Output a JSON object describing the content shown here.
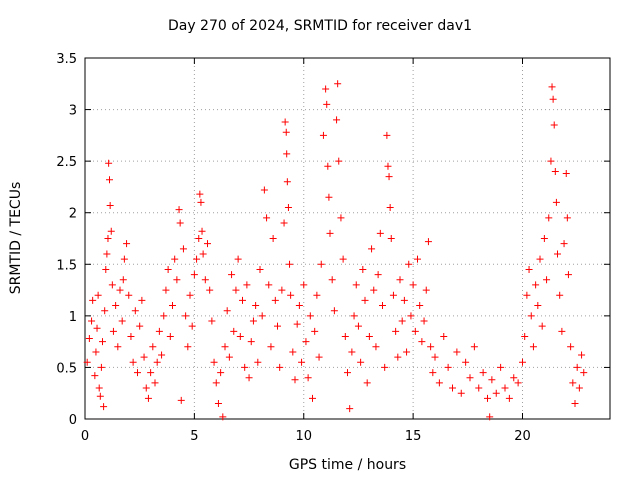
{
  "chart_data": {
    "type": "scatter",
    "title": "Day 270 of 2024, SRMTID for receiver dav1",
    "xlabel": "GPS time / hours",
    "ylabel": "SRMTID / TECUs",
    "xlim": [
      0,
      24
    ],
    "ylim": [
      0,
      3.5
    ],
    "xticks": [
      0,
      5,
      10,
      15,
      20
    ],
    "yticks": [
      0,
      0.5,
      1,
      1.5,
      2,
      2.5,
      3,
      3.5
    ],
    "xtick_labels": [
      "0",
      "5",
      "10",
      "15",
      "20"
    ],
    "ytick_labels": [
      "0",
      "0.5",
      "1",
      "1.5",
      "2",
      "2.5",
      "3",
      "3.5"
    ],
    "grid": true,
    "marker": "+",
    "color": "#ff0000",
    "series": [
      {
        "name": "dav1",
        "points": [
          [
            0.1,
            0.55
          ],
          [
            0.2,
            0.78
          ],
          [
            0.3,
            0.95
          ],
          [
            0.35,
            1.15
          ],
          [
            0.45,
            0.42
          ],
          [
            0.5,
            0.65
          ],
          [
            0.55,
            0.88
          ],
          [
            0.6,
            1.2
          ],
          [
            0.65,
            0.3
          ],
          [
            0.7,
            0.22
          ],
          [
            0.75,
            0.5
          ],
          [
            0.8,
            0.75
          ],
          [
            0.85,
            0.12
          ],
          [
            0.9,
            1.05
          ],
          [
            0.95,
            1.45
          ],
          [
            1.0,
            1.6
          ],
          [
            1.05,
            1.75
          ],
          [
            1.08,
            2.48
          ],
          [
            1.12,
            2.32
          ],
          [
            1.15,
            2.07
          ],
          [
            1.2,
            1.82
          ],
          [
            1.25,
            1.3
          ],
          [
            1.3,
            0.85
          ],
          [
            1.4,
            1.1
          ],
          [
            1.5,
            0.7
          ],
          [
            1.6,
            1.25
          ],
          [
            1.7,
            0.95
          ],
          [
            1.75,
            1.35
          ],
          [
            1.8,
            1.55
          ],
          [
            1.9,
            1.7
          ],
          [
            2.0,
            1.2
          ],
          [
            2.1,
            0.8
          ],
          [
            2.2,
            0.55
          ],
          [
            2.3,
            1.05
          ],
          [
            2.4,
            0.45
          ],
          [
            2.5,
            0.9
          ],
          [
            2.6,
            1.15
          ],
          [
            2.7,
            0.6
          ],
          [
            2.8,
            0.3
          ],
          [
            2.9,
            0.2
          ],
          [
            3.0,
            0.45
          ],
          [
            3.1,
            0.7
          ],
          [
            3.2,
            0.35
          ],
          [
            3.3,
            0.55
          ],
          [
            3.4,
            0.85
          ],
          [
            3.5,
            0.62
          ],
          [
            3.6,
            1.0
          ],
          [
            3.7,
            1.25
          ],
          [
            3.8,
            1.45
          ],
          [
            3.9,
            0.8
          ],
          [
            4.0,
            1.1
          ],
          [
            4.1,
            1.55
          ],
          [
            4.2,
            1.35
          ],
          [
            4.3,
            2.03
          ],
          [
            4.35,
            1.9
          ],
          [
            4.4,
            0.18
          ],
          [
            4.5,
            1.65
          ],
          [
            4.6,
            1.0
          ],
          [
            4.7,
            0.7
          ],
          [
            4.8,
            1.2
          ],
          [
            4.9,
            0.9
          ],
          [
            5.0,
            1.4
          ],
          [
            5.1,
            1.55
          ],
          [
            5.2,
            1.75
          ],
          [
            5.25,
            2.18
          ],
          [
            5.3,
            2.1
          ],
          [
            5.35,
            1.82
          ],
          [
            5.4,
            1.6
          ],
          [
            5.5,
            1.35
          ],
          [
            5.6,
            1.7
          ],
          [
            5.7,
            1.25
          ],
          [
            5.8,
            0.95
          ],
          [
            5.9,
            0.55
          ],
          [
            6.0,
            0.35
          ],
          [
            6.1,
            0.15
          ],
          [
            6.2,
            0.45
          ],
          [
            6.3,
            0.02
          ],
          [
            6.4,
            0.7
          ],
          [
            6.5,
            1.05
          ],
          [
            6.6,
            0.6
          ],
          [
            6.7,
            1.4
          ],
          [
            6.8,
            0.85
          ],
          [
            6.9,
            1.25
          ],
          [
            7.0,
            1.55
          ],
          [
            7.1,
            0.8
          ],
          [
            7.2,
            1.15
          ],
          [
            7.3,
            0.5
          ],
          [
            7.4,
            1.3
          ],
          [
            7.5,
            0.4
          ],
          [
            7.6,
            0.75
          ],
          [
            7.7,
            0.95
          ],
          [
            7.8,
            1.1
          ],
          [
            7.9,
            0.55
          ],
          [
            8.0,
            1.45
          ],
          [
            8.1,
            1.0
          ],
          [
            8.2,
            2.22
          ],
          [
            8.3,
            1.95
          ],
          [
            8.4,
            1.3
          ],
          [
            8.5,
            0.7
          ],
          [
            8.6,
            1.75
          ],
          [
            8.7,
            1.15
          ],
          [
            8.8,
            0.9
          ],
          [
            8.9,
            0.5
          ],
          [
            9.0,
            1.25
          ],
          [
            9.1,
            1.9
          ],
          [
            9.15,
            2.88
          ],
          [
            9.2,
            2.78
          ],
          [
            9.22,
            2.57
          ],
          [
            9.25,
            2.3
          ],
          [
            9.3,
            2.05
          ],
          [
            9.35,
            1.5
          ],
          [
            9.4,
            1.2
          ],
          [
            9.5,
            0.65
          ],
          [
            9.6,
            0.38
          ],
          [
            9.7,
            0.92
          ],
          [
            9.8,
            1.1
          ],
          [
            9.9,
            0.55
          ],
          [
            10.0,
            1.3
          ],
          [
            10.1,
            0.75
          ],
          [
            10.2,
            0.4
          ],
          [
            10.3,
            1.0
          ],
          [
            10.4,
            0.2
          ],
          [
            10.5,
            0.85
          ],
          [
            10.6,
            1.2
          ],
          [
            10.7,
            0.6
          ],
          [
            10.8,
            1.5
          ],
          [
            10.9,
            2.75
          ],
          [
            11.0,
            3.2
          ],
          [
            11.05,
            3.05
          ],
          [
            11.1,
            2.45
          ],
          [
            11.15,
            2.15
          ],
          [
            11.2,
            1.8
          ],
          [
            11.3,
            1.35
          ],
          [
            11.4,
            1.05
          ],
          [
            11.5,
            2.9
          ],
          [
            11.55,
            3.25
          ],
          [
            11.6,
            2.5
          ],
          [
            11.7,
            1.95
          ],
          [
            11.8,
            1.55
          ],
          [
            11.9,
            0.8
          ],
          [
            12.0,
            0.45
          ],
          [
            12.1,
            0.1
          ],
          [
            12.2,
            0.65
          ],
          [
            12.3,
            1.0
          ],
          [
            12.4,
            1.3
          ],
          [
            12.5,
            0.9
          ],
          [
            12.6,
            0.55
          ],
          [
            12.7,
            1.45
          ],
          [
            12.8,
            1.15
          ],
          [
            12.9,
            0.35
          ],
          [
            13.0,
            0.8
          ],
          [
            13.1,
            1.65
          ],
          [
            13.2,
            1.25
          ],
          [
            13.3,
            0.7
          ],
          [
            13.4,
            1.4
          ],
          [
            13.5,
            1.8
          ],
          [
            13.6,
            1.1
          ],
          [
            13.7,
            0.5
          ],
          [
            13.8,
            2.75
          ],
          [
            13.85,
            2.45
          ],
          [
            13.9,
            2.35
          ],
          [
            13.95,
            2.05
          ],
          [
            14.0,
            1.75
          ],
          [
            14.1,
            1.2
          ],
          [
            14.2,
            0.85
          ],
          [
            14.3,
            0.6
          ],
          [
            14.4,
            1.35
          ],
          [
            14.5,
            0.95
          ],
          [
            14.6,
            1.15
          ],
          [
            14.7,
            0.65
          ],
          [
            14.8,
            1.5
          ],
          [
            14.9,
            1.0
          ],
          [
            15.0,
            1.3
          ],
          [
            15.1,
            0.85
          ],
          [
            15.2,
            1.55
          ],
          [
            15.3,
            1.1
          ],
          [
            15.4,
            0.75
          ],
          [
            15.5,
            0.95
          ],
          [
            15.6,
            1.25
          ],
          [
            15.7,
            1.72
          ],
          [
            15.8,
            0.7
          ],
          [
            15.9,
            0.45
          ],
          [
            16.0,
            0.6
          ],
          [
            16.2,
            0.35
          ],
          [
            16.4,
            0.8
          ],
          [
            16.6,
            0.5
          ],
          [
            16.8,
            0.3
          ],
          [
            17.0,
            0.65
          ],
          [
            17.2,
            0.25
          ],
          [
            17.4,
            0.55
          ],
          [
            17.6,
            0.4
          ],
          [
            17.8,
            0.7
          ],
          [
            18.0,
            0.3
          ],
          [
            18.2,
            0.45
          ],
          [
            18.4,
            0.2
          ],
          [
            18.5,
            0.02
          ],
          [
            18.6,
            0.38
          ],
          [
            18.8,
            0.25
          ],
          [
            19.0,
            0.5
          ],
          [
            19.2,
            0.3
          ],
          [
            19.4,
            0.2
          ],
          [
            19.6,
            0.4
          ],
          [
            19.8,
            0.35
          ],
          [
            20.0,
            0.55
          ],
          [
            20.1,
            0.8
          ],
          [
            20.2,
            1.2
          ],
          [
            20.3,
            1.45
          ],
          [
            20.4,
            1.0
          ],
          [
            20.5,
            0.7
          ],
          [
            20.6,
            1.3
          ],
          [
            20.7,
            1.1
          ],
          [
            20.8,
            1.55
          ],
          [
            20.9,
            0.9
          ],
          [
            21.0,
            1.75
          ],
          [
            21.1,
            1.35
          ],
          [
            21.2,
            1.95
          ],
          [
            21.3,
            2.5
          ],
          [
            21.35,
            3.22
          ],
          [
            21.4,
            3.1
          ],
          [
            21.45,
            2.85
          ],
          [
            21.5,
            2.4
          ],
          [
            21.55,
            2.1
          ],
          [
            21.6,
            1.6
          ],
          [
            21.7,
            1.2
          ],
          [
            21.8,
            0.85
          ],
          [
            21.9,
            1.7
          ],
          [
            22.0,
            2.38
          ],
          [
            22.05,
            1.95
          ],
          [
            22.1,
            1.4
          ],
          [
            22.2,
            0.7
          ],
          [
            22.3,
            0.35
          ],
          [
            22.4,
            0.15
          ],
          [
            22.5,
            0.5
          ],
          [
            22.6,
            0.3
          ],
          [
            22.7,
            0.62
          ],
          [
            22.8,
            0.45
          ]
        ]
      }
    ]
  }
}
